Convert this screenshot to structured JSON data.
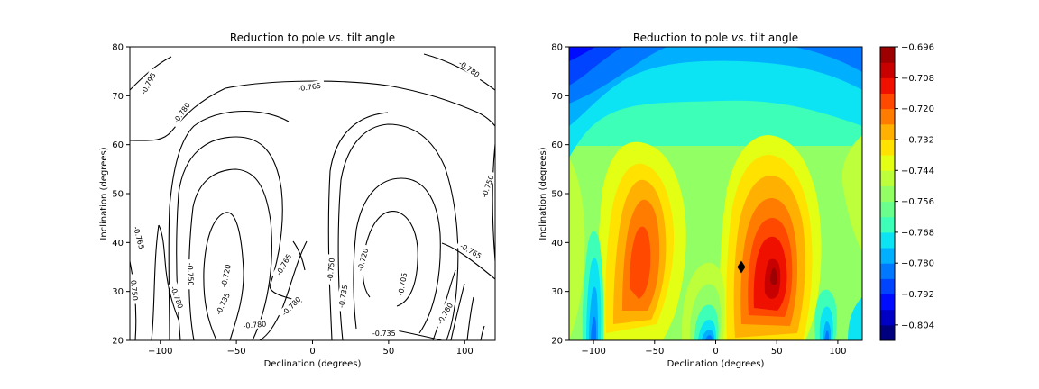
{
  "chart_data": [
    {
      "type": "contour",
      "title_prefix": "Reduction to pole ",
      "title_italic": "vs.",
      "title_suffix": " tilt angle",
      "xlabel": "Declination (degrees)",
      "ylabel": "Inclination (degrees)",
      "xlim": [
        -120,
        120
      ],
      "ylim": [
        20,
        80
      ],
      "xticks": [
        -100,
        -50,
        0,
        50,
        100
      ],
      "yticks": [
        20,
        30,
        40,
        50,
        60,
        70,
        80
      ],
      "line_color": "#000000",
      "contour_labels": [
        {
          "text": "-0.795",
          "x": -108,
          "y": 72.5,
          "angle": -62
        },
        {
          "text": "-0.780",
          "x": -86,
          "y": 66.5,
          "angle": -55
        },
        {
          "text": "-0.765",
          "x": -2,
          "y": 71.8,
          "angle": -8
        },
        {
          "text": "-0.780",
          "x": 103,
          "y": 75.5,
          "angle": 35
        },
        {
          "text": "-0.750",
          "x": 115,
          "y": 51.5,
          "angle": -70
        },
        {
          "text": "-0.765",
          "x": -114,
          "y": 41,
          "angle": 75
        },
        {
          "text": "-0.750",
          "x": -117,
          "y": 30.5,
          "angle": 85
        },
        {
          "text": "-0.780",
          "x": -89,
          "y": 28.8,
          "angle": 70
        },
        {
          "text": "-0.750",
          "x": -80,
          "y": 33.5,
          "angle": 88
        },
        {
          "text": "-0.720",
          "x": -57,
          "y": 33.2,
          "angle": -78
        },
        {
          "text": "-0.735",
          "x": -59,
          "y": 27.5,
          "angle": -65
        },
        {
          "text": "-0.780",
          "x": -38,
          "y": 23.2,
          "angle": -5
        },
        {
          "text": "-0.765",
          "x": -19,
          "y": 35.5,
          "angle": -60
        },
        {
          "text": "-0.780",
          "x": -14,
          "y": 27,
          "angle": -45
        },
        {
          "text": "-0.750",
          "x": 12,
          "y": 34.5,
          "angle": -85
        },
        {
          "text": "-0.735",
          "x": 20,
          "y": 29,
          "angle": -80
        },
        {
          "text": "-0.720",
          "x": 33,
          "y": 36.5,
          "angle": -75
        },
        {
          "text": "-0.705",
          "x": 59,
          "y": 31.5,
          "angle": -80
        },
        {
          "text": "-0.735",
          "x": 47,
          "y": 21.5,
          "angle": 0
        },
        {
          "text": "-0.765",
          "x": 104,
          "y": 38.3,
          "angle": 30
        },
        {
          "text": "-0.780",
          "x": 87,
          "y": 25.5,
          "angle": -60
        }
      ]
    },
    {
      "type": "filled_contour",
      "title_prefix": "Reduction to pole ",
      "title_italic": "vs.",
      "title_suffix": " tilt angle",
      "xlabel": "Declination (degrees)",
      "ylabel": "Inclination (degrees)",
      "xlim": [
        -120,
        120
      ],
      "ylim": [
        20,
        80
      ],
      "xticks": [
        -100,
        -50,
        0,
        50,
        100
      ],
      "yticks": [
        20,
        30,
        40,
        50,
        60,
        70,
        80
      ],
      "marker": {
        "shape": "diamond",
        "x": 21,
        "y": 35,
        "color": "#000000"
      },
      "colorbar": {
        "levels": [
          -0.81,
          -0.804,
          -0.798,
          -0.792,
          -0.786,
          -0.78,
          -0.774,
          -0.768,
          -0.762,
          -0.756,
          -0.75,
          -0.744,
          -0.738,
          -0.732,
          -0.726,
          -0.72,
          -0.714,
          -0.708,
          -0.702,
          -0.696
        ],
        "tick_labels": [
          "-0.696",
          "-0.708",
          "-0.720",
          "-0.732",
          "-0.744",
          "-0.756",
          "-0.768",
          "-0.780",
          "-0.792",
          "-0.804"
        ],
        "tick_values": [
          -0.696,
          -0.708,
          -0.72,
          -0.732,
          -0.744,
          -0.756,
          -0.768,
          -0.78,
          -0.792,
          -0.804
        ],
        "colors": [
          "#00007f",
          "#0000c4",
          "#000cff",
          "#0044ff",
          "#0078ff",
          "#00b0ff",
          "#0ce4f4",
          "#3effb8",
          "#6aff8c",
          "#92ff64",
          "#bcff3a",
          "#e2ff14",
          "#ffe200",
          "#ffb000",
          "#ff7c00",
          "#ff4800",
          "#f01000",
          "#c80000",
          "#9c0000"
        ]
      }
    }
  ]
}
